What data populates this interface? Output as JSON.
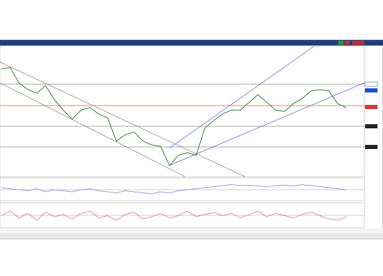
{
  "chart_data": {
    "type": "line",
    "ylim": [
      0,
      100
    ],
    "series": [
      {
        "color": "#2a7a2a",
        "values": [
          83,
          84,
          72,
          67,
          64,
          70,
          59,
          51,
          44,
          51,
          53,
          48,
          45,
          27,
          32,
          34,
          27,
          24,
          23,
          8,
          16,
          18,
          16,
          37,
          43,
          48,
          51,
          51,
          57,
          63,
          57,
          51,
          50,
          56,
          60,
          66,
          67,
          66,
          56,
          53
        ]
      },
      {
        "color": "#7a7ad0",
        "values": [
          60,
          55,
          50,
          45,
          55,
          40,
          50,
          45,
          40,
          50,
          55,
          45,
          40,
          35,
          45,
          40,
          35,
          30,
          40,
          35,
          45,
          50,
          55,
          60,
          65,
          70,
          75,
          70,
          72,
          68,
          65,
          70,
          72,
          68,
          75,
          70,
          65,
          60,
          55,
          50
        ]
      },
      {
        "color": "#e06060",
        "values": [
          50,
          70,
          40,
          60,
          30,
          65,
          45,
          55,
          35,
          60,
          70,
          40,
          50,
          30,
          55,
          65,
          35,
          45,
          60,
          40,
          50,
          70,
          45,
          55,
          65,
          50,
          60,
          40,
          55,
          70,
          45,
          60,
          50,
          40,
          55,
          65,
          50,
          35,
          30,
          45
        ]
      }
    ]
  }
}
